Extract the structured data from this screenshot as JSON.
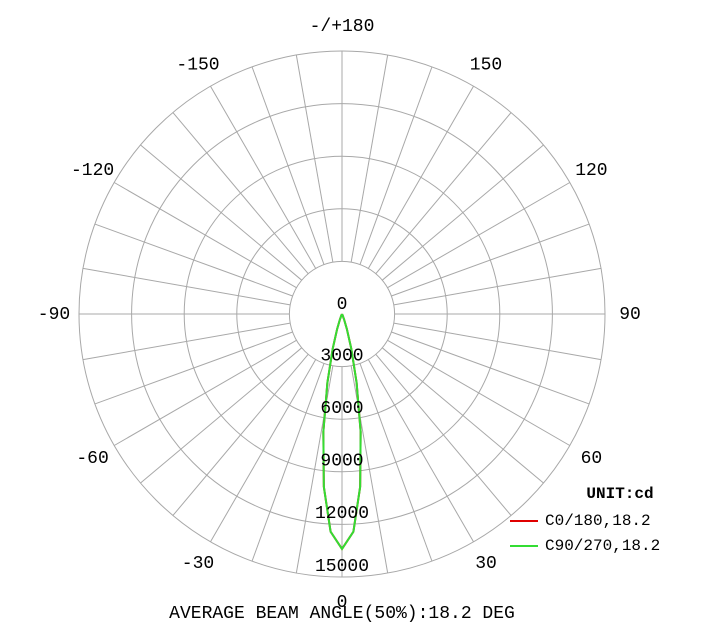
{
  "chart_data": {
    "type": "polar",
    "subtitle": "AVERAGE BEAM ANGLE(50%):18.2 DEG",
    "unit_label": "UNIT:cd",
    "rlim": [
      0,
      15000
    ],
    "rticks": [
      0,
      3000,
      6000,
      9000,
      12000,
      15000
    ],
    "thetaticks": [
      0,
      30,
      60,
      90,
      120,
      150,
      {
        "value": 180,
        "label": "-/+180"
      },
      -150,
      -120,
      -90,
      -60,
      -30
    ],
    "theta_gridlines": [
      0,
      10,
      20,
      30,
      40,
      50,
      60,
      70,
      80,
      90,
      100,
      110,
      120,
      130,
      140,
      150,
      160,
      170,
      180,
      190,
      200,
      210,
      220,
      230,
      240,
      250,
      260,
      270,
      280,
      290,
      300,
      310,
      320,
      330,
      340,
      350
    ],
    "grid": true,
    "theta": [
      -30,
      -27,
      -24,
      -21,
      -18,
      -15,
      -12,
      -9,
      -6,
      -3,
      0,
      3,
      6,
      9,
      12,
      15,
      18,
      21,
      24,
      27,
      30
    ],
    "series": [
      {
        "name": "C0/180,18.2",
        "color": "#e00000",
        "values": [
          7,
          30,
          110,
          330,
          890,
          2040,
          4010,
          6800,
          9910,
          12430,
          13400,
          12430,
          9910,
          6800,
          4010,
          2040,
          890,
          330,
          110,
          30,
          7
        ]
      },
      {
        "name": "C90/270,18.2",
        "color": "#33dd33",
        "values": [
          7,
          30,
          110,
          330,
          890,
          2040,
          4010,
          6800,
          9910,
          12430,
          13400,
          12430,
          9910,
          6800,
          4010,
          2040,
          890,
          330,
          110,
          30,
          7
        ]
      }
    ]
  }
}
